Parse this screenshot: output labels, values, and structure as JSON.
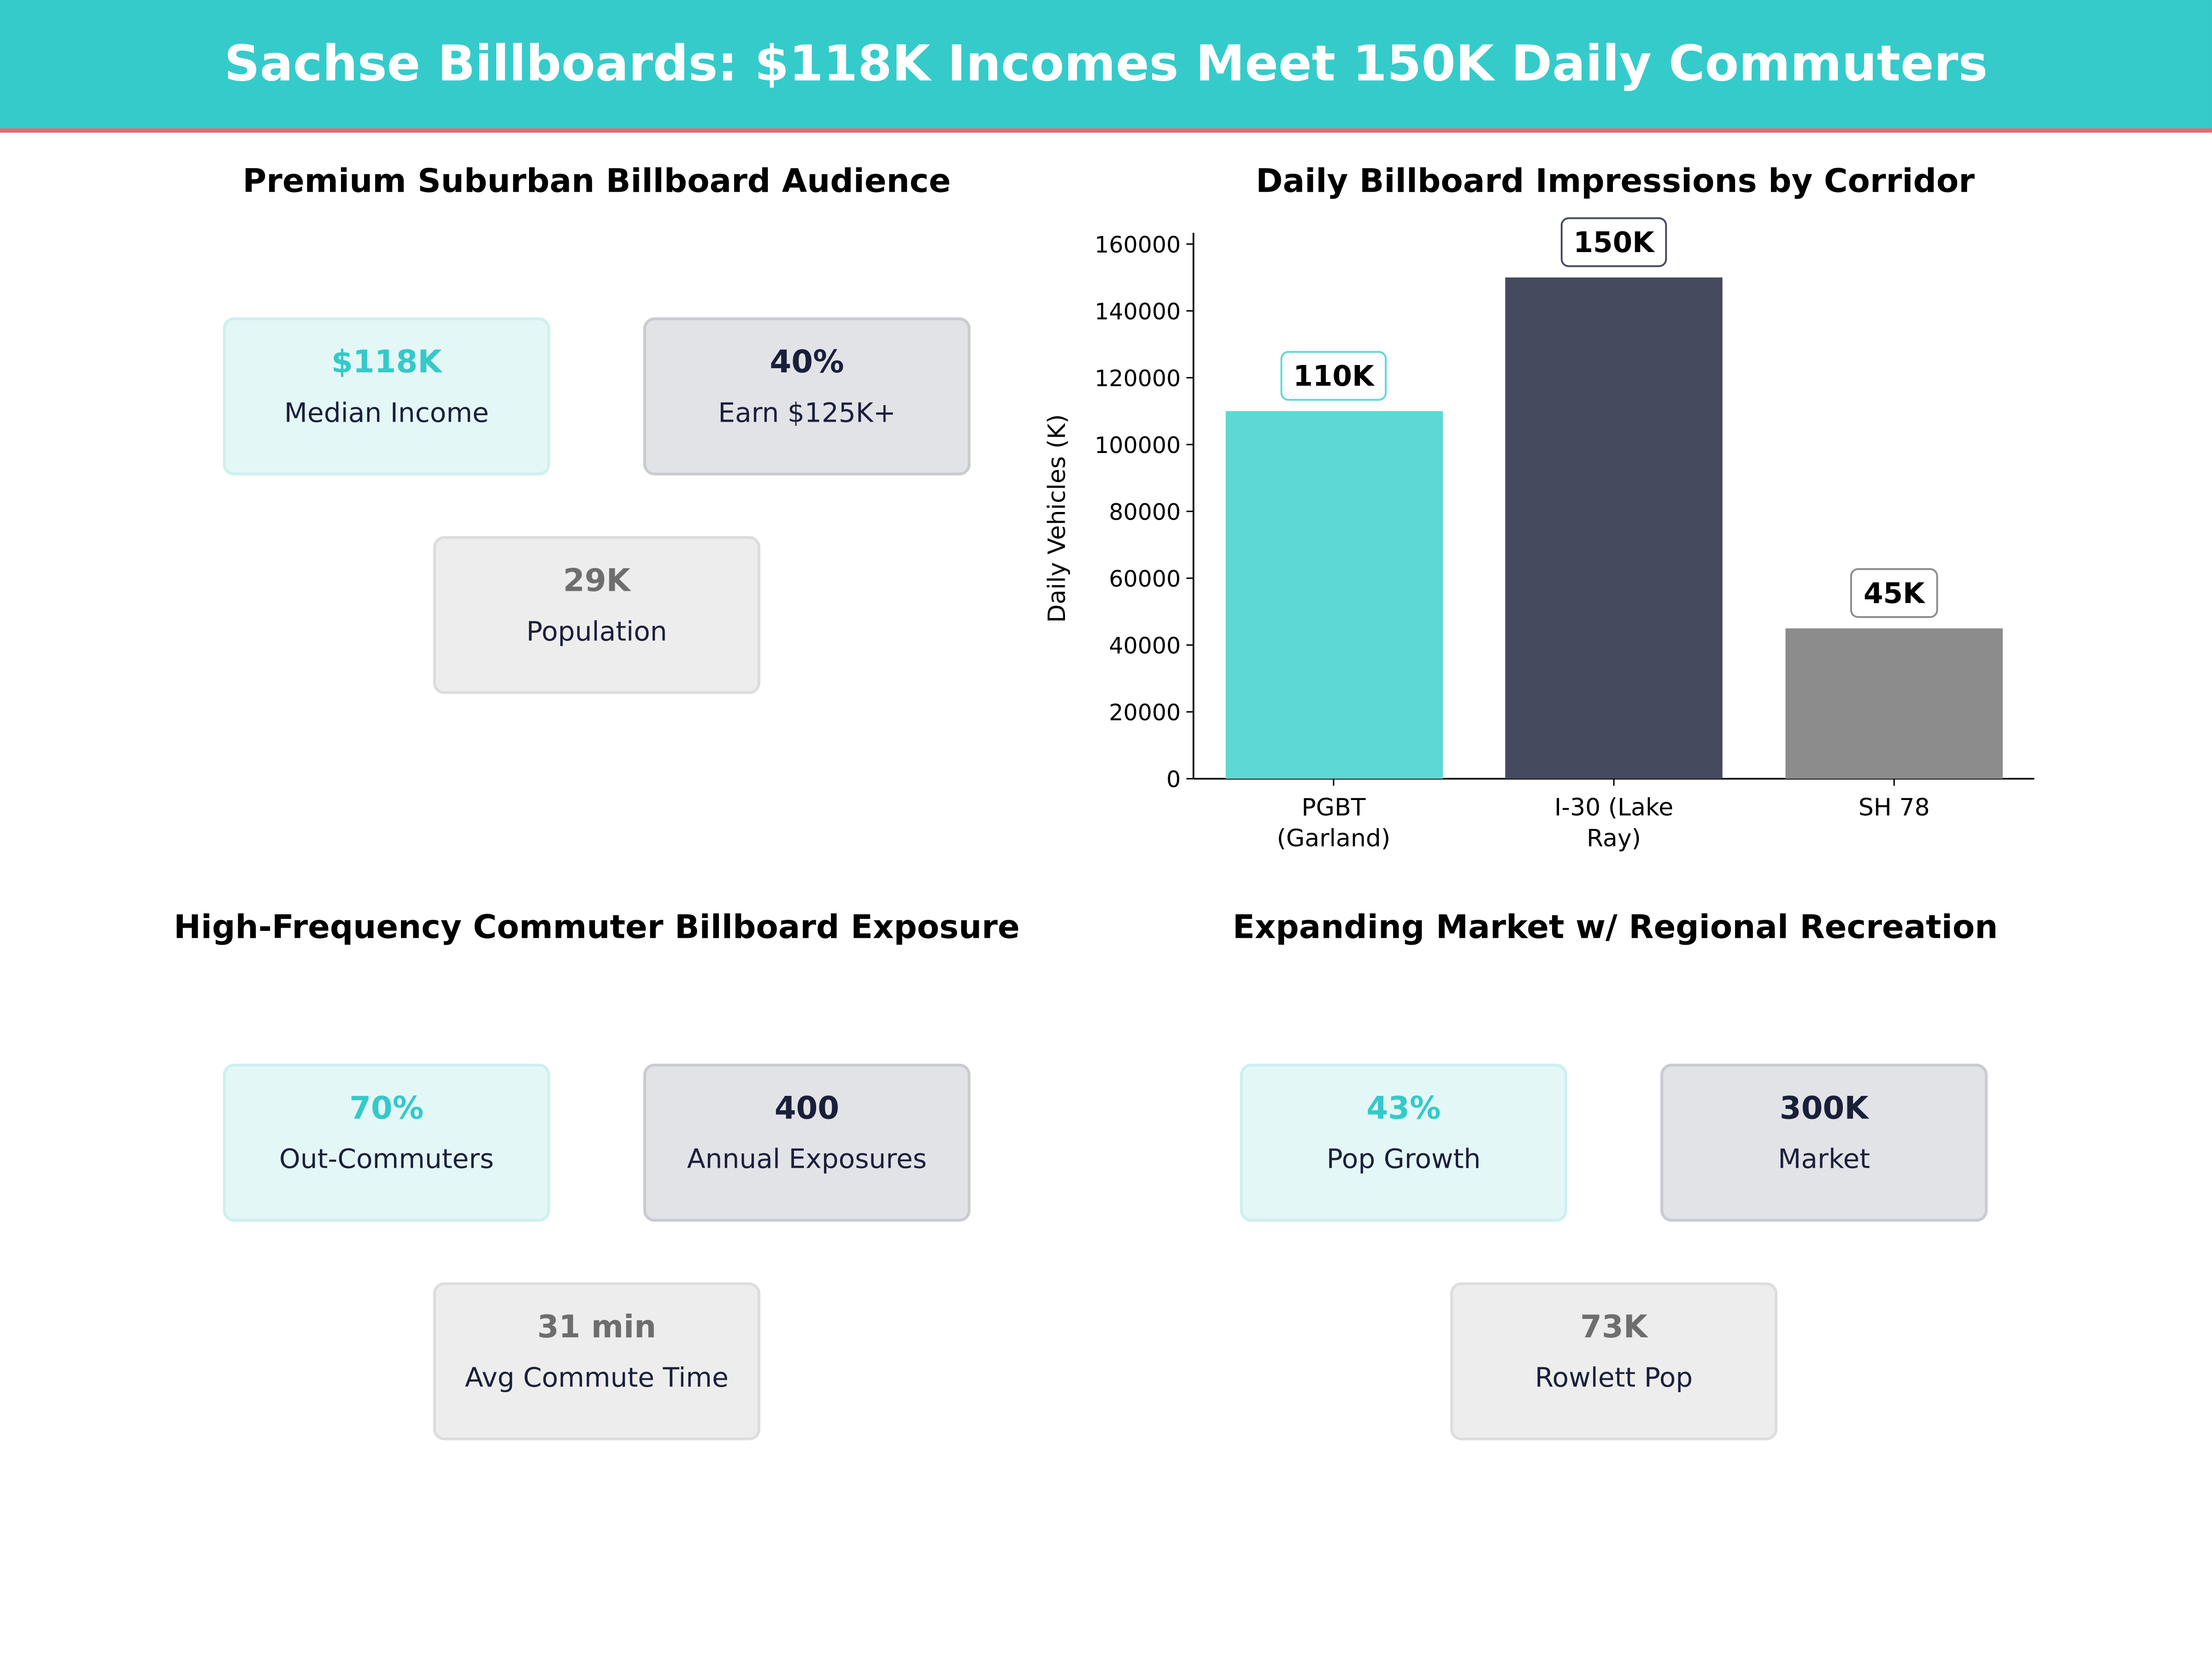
{
  "header": {
    "title": "Sachse Billboards: $118K Incomes Meet 150K Daily Commuters",
    "bg_color": "#35cbcb",
    "accent_color": "#ec6475"
  },
  "panels": [
    {
      "title": "Premium Suburban Billboard Audience",
      "cards": [
        {
          "value": "$118K",
          "label": "Median Income",
          "style": "teal"
        },
        {
          "value": "40%",
          "label": "Earn $125K+",
          "style": "dark"
        },
        {
          "value": "29K",
          "label": "Population",
          "style": "gray"
        }
      ]
    },
    {
      "title": "High-Frequency Commuter Billboard Exposure",
      "cards": [
        {
          "value": "70%",
          "label": "Out-Commuters",
          "style": "teal"
        },
        {
          "value": "400",
          "label": "Annual Exposures",
          "style": "dark"
        },
        {
          "value": "31 min",
          "label": "Avg Commute Time",
          "style": "gray"
        }
      ]
    },
    {
      "title": "Expanding Market w/ Regional Recreation",
      "cards": [
        {
          "value": "43%",
          "label": "Pop Growth",
          "style": "teal"
        },
        {
          "value": "300K",
          "label": "Market",
          "style": "dark"
        },
        {
          "value": "73K",
          "label": "Rowlett Pop",
          "style": "gray"
        }
      ]
    }
  ],
  "chart_data": {
    "type": "bar",
    "title": "Daily Billboard Impressions by Corridor",
    "xlabel": "",
    "ylabel": "Daily Vehicles (K)",
    "categories": [
      [
        "PGBT",
        "(Garland)"
      ],
      [
        "I-30 (Lake",
        "Ray)"
      ],
      [
        "SH 78"
      ]
    ],
    "values": [
      110000,
      150000,
      45000
    ],
    "data_labels": [
      "110K",
      "150K",
      "45K"
    ],
    "colors": [
      "#5dd8d5",
      "#454a5f",
      "#8c8c8c"
    ],
    "label_border_colors": [
      "#5dd8d5",
      "#454a5f",
      "#8c8c8c"
    ],
    "ylim": [
      0,
      160000
    ],
    "yticks": [
      "0",
      "20000",
      "40000",
      "60000",
      "80000",
      "100000",
      "120000",
      "140000",
      "160000"
    ],
    "grid": false
  }
}
